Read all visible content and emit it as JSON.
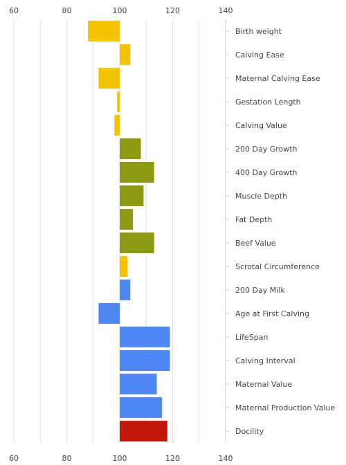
{
  "chart_data": {
    "type": "bar",
    "orientation": "horizontal",
    "baseline": 100,
    "xlim": [
      60,
      140
    ],
    "xticks": [
      60,
      80,
      100,
      120,
      140
    ],
    "xtick_labels": [
      "60",
      "80",
      "100",
      "120",
      "140"
    ],
    "axis_position": "top and bottom",
    "category_label_position": "right",
    "grid": true,
    "categories": [
      "Birth weight",
      "Calving Ease",
      "Maternal Calving Ease",
      "Gestation Length",
      "Calving Value",
      "200 Day Growth",
      "400 Day Growth",
      "Muscle Depth",
      "Fat Depth",
      "Beef Value",
      "Scrotal Circumference",
      "200 Day Milk",
      "Age at First Calving",
      "LifeSpan",
      "Calving Interval",
      "Maternal Value",
      "Maternal Production Value",
      "Docility"
    ],
    "values": [
      88,
      104,
      92,
      99,
      98,
      108,
      113,
      109,
      105,
      113,
      103,
      104,
      92,
      119,
      119,
      114,
      116,
      118
    ],
    "colors": [
      "#f5c400",
      "#f5c400",
      "#f5c400",
      "#f5c400",
      "#f5c400",
      "#8c9a12",
      "#8c9a12",
      "#8c9a12",
      "#8c9a12",
      "#8c9a12",
      "#f5c400",
      "#4d88f5",
      "#4d88f5",
      "#4d88f5",
      "#4d88f5",
      "#4d88f5",
      "#4d88f5",
      "#c0190a"
    ]
  }
}
